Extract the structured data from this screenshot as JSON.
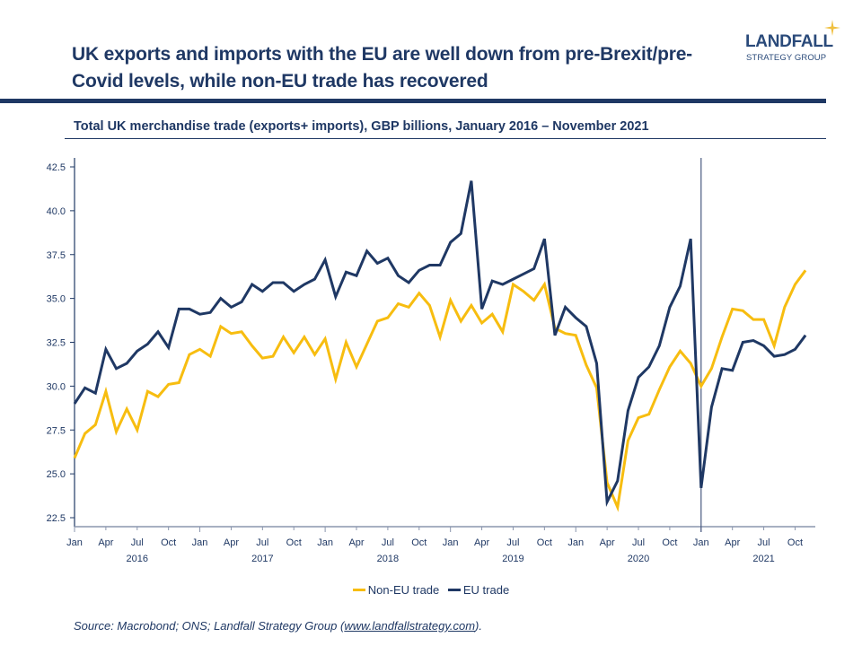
{
  "header": {
    "title": "UK exports and imports with the EU are well down from pre-Brexit/pre-Covid levels, while non-EU trade has recovered",
    "logo_word": "LANDFALL",
    "logo_sub": "STRATEGY GROUP",
    "subtitle": "Total UK merchandise trade (exports+ imports), GBP billions, January 2016 – November 2021"
  },
  "colors": {
    "navy": "#1f3864",
    "yellow": "#f7bd10",
    "logo_star": "#f0c040"
  },
  "footer": {
    "source_prefix": "Source: Macrobond; ONS; Landfall Strategy Group (",
    "source_link": "www.landfallstrategy.com",
    "source_suffix": ")."
  },
  "chart_data": {
    "type": "line",
    "title": "Total UK merchandise trade (exports+ imports), GBP billions, January 2016 – November 2021",
    "xlabel": "",
    "ylabel": "",
    "ylim": [
      22.5,
      42.5
    ],
    "yticks": [
      "22.5",
      "25.0",
      "27.5",
      "30.0",
      "32.5",
      "35.0",
      "37.5",
      "40.0",
      "42.5"
    ],
    "x_start": "2016-01",
    "x_end": "2021-11",
    "month_tick_labels": [
      "Jan",
      "Apr",
      "Jul",
      "Oct"
    ],
    "years": [
      "2016",
      "2017",
      "2018",
      "2019",
      "2020",
      "2021"
    ],
    "vertical_marker": "2021-01",
    "grid": false,
    "legend_position": "bottom-center",
    "series": [
      {
        "name": "Non-EU trade",
        "color": "#f7bd10",
        "values": [
          25.9,
          27.3,
          27.8,
          29.7,
          27.4,
          28.7,
          27.5,
          29.7,
          29.4,
          30.1,
          30.2,
          31.8,
          32.1,
          31.7,
          33.4,
          33.0,
          33.1,
          32.3,
          31.6,
          31.7,
          32.8,
          31.9,
          32.8,
          31.8,
          32.7,
          30.4,
          32.5,
          31.1,
          32.4,
          33.7,
          33.9,
          34.7,
          34.5,
          35.3,
          34.6,
          32.8,
          34.9,
          33.7,
          34.6,
          33.6,
          34.1,
          33.1,
          35.8,
          35.4,
          34.9,
          35.8,
          33.3,
          33.0,
          32.9,
          31.2,
          29.9,
          24.5,
          23.1,
          26.9,
          28.2,
          28.4,
          29.8,
          31.1,
          32.0,
          31.3,
          30.0,
          31.0,
          32.8,
          34.4,
          34.3,
          33.8,
          33.8,
          32.3,
          34.5,
          35.8,
          36.6
        ]
      },
      {
        "name": "EU trade",
        "color": "#1f3864",
        "values": [
          29.0,
          29.9,
          29.6,
          32.1,
          31.0,
          31.3,
          32.0,
          32.4,
          33.1,
          32.2,
          34.4,
          34.4,
          34.1,
          34.2,
          35.0,
          34.5,
          34.8,
          35.8,
          35.4,
          35.9,
          35.9,
          35.4,
          35.8,
          36.1,
          37.2,
          35.1,
          36.5,
          36.3,
          37.7,
          37.0,
          37.3,
          36.3,
          35.9,
          36.6,
          36.9,
          36.9,
          38.2,
          38.7,
          41.7,
          34.4,
          36.0,
          35.8,
          36.1,
          36.4,
          36.7,
          38.4,
          32.9,
          34.5,
          33.9,
          33.4,
          31.3,
          23.4,
          24.6,
          28.6,
          30.5,
          31.1,
          32.3,
          34.5,
          35.7,
          38.4,
          24.2,
          28.8,
          31.0,
          30.9,
          32.5,
          32.6,
          32.3,
          31.7,
          31.8,
          32.1,
          32.9
        ]
      }
    ]
  }
}
